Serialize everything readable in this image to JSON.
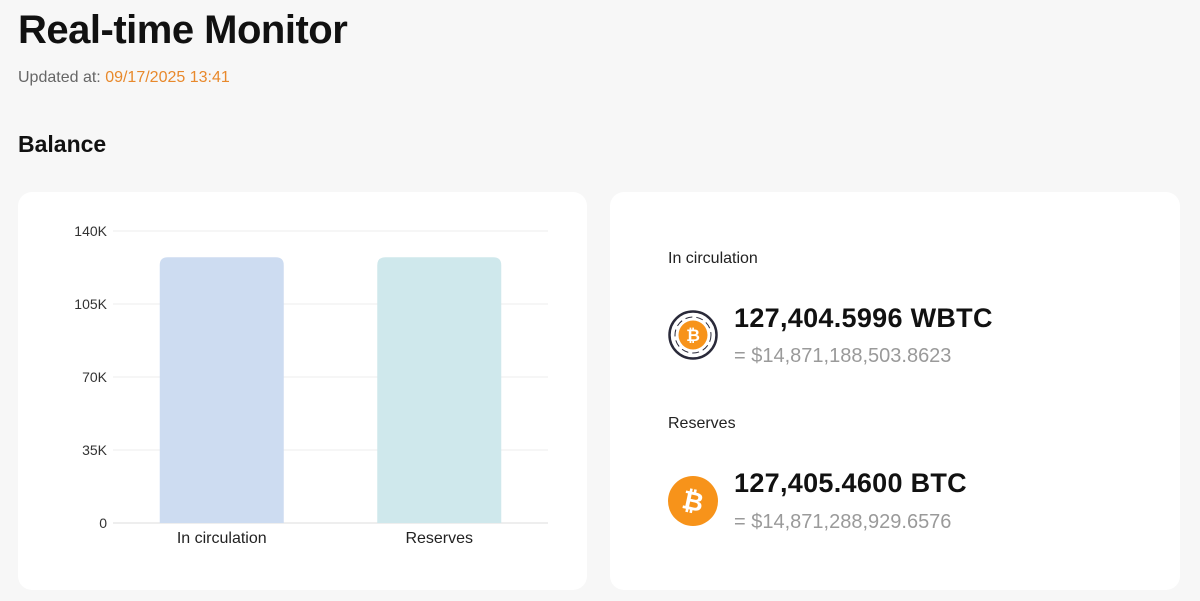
{
  "header": {
    "title": "Real-time Monitor",
    "updated_label": "Updated at:",
    "updated_time": "09/17/2025 13:41"
  },
  "section": {
    "title": "Balance"
  },
  "chart_data": {
    "type": "bar",
    "categories": [
      "In circulation",
      "Reserves"
    ],
    "values": [
      127404.5996,
      127405.46
    ],
    "ylim": [
      0,
      140000
    ],
    "yticks": [
      0,
      35000,
      70000,
      105000,
      140000
    ],
    "ytick_labels": [
      "0",
      "35K",
      "70K",
      "105K",
      "140K"
    ],
    "bar_colors": [
      "#cddcf1",
      "#cfe8ec"
    ],
    "grid": true,
    "xlabel": "",
    "ylabel": ""
  },
  "circulation": {
    "label": "In circulation",
    "amount": "127,404.5996 WBTC",
    "usd": "= $14,871,188,503.8623",
    "icon": "wbtc-icon"
  },
  "reserves": {
    "label": "Reserves",
    "amount": "127,405.4600 BTC",
    "usd": "= $14,871,288,929.6576",
    "icon": "btc-icon"
  },
  "colors": {
    "accent": "#e8892c",
    "btc_orange": "#f7931a",
    "wbtc_ring": "#2a2a3a"
  }
}
